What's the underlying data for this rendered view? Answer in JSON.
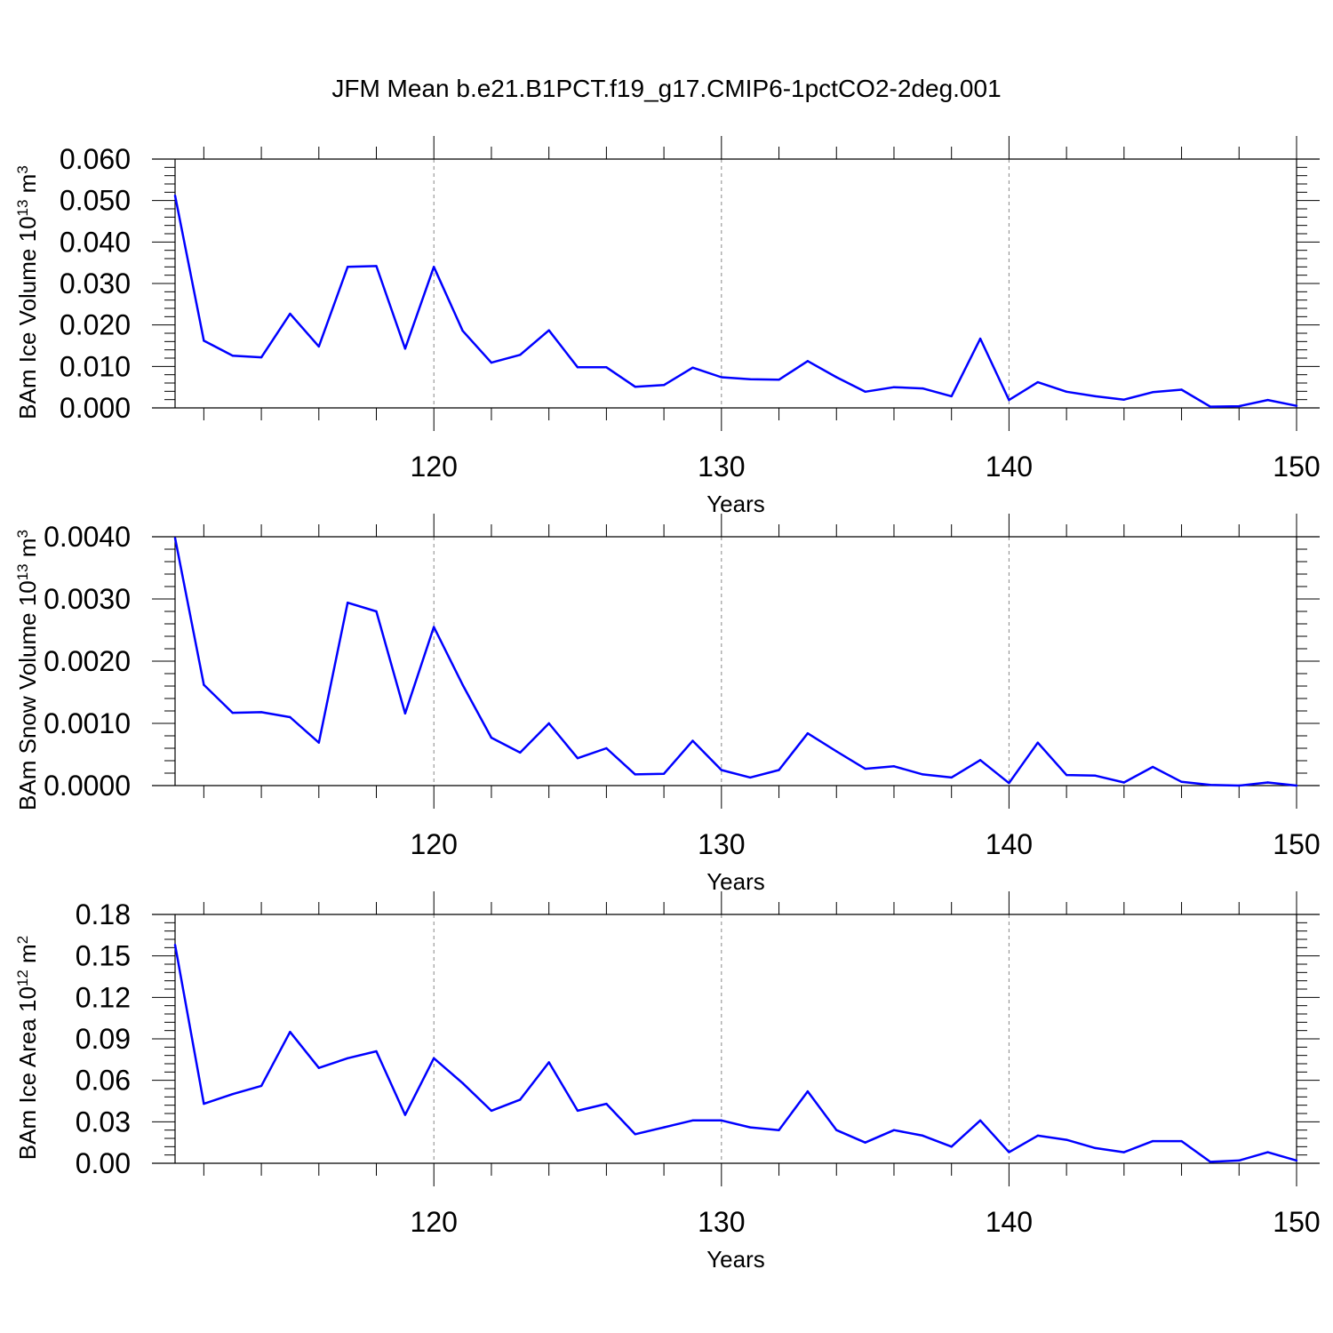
{
  "title": "JFM Mean b.e21.B1PCT.f19_g17.CMIP6-1pctCO2-2deg.001",
  "colors": {
    "series": "#0000ff",
    "axis": "#000000",
    "grid": "#888888"
  },
  "chart_data": [
    {
      "type": "line",
      "xlabel": "Years",
      "ylabel": "BAm Ice Volume 10",
      "ylabel_exp": "13",
      "ylabel_unit": "m",
      "ylabel_unit_exp": "3",
      "xlim": [
        111,
        150
      ],
      "ylim": [
        0.0,
        0.06
      ],
      "xticks": [
        120,
        130,
        140,
        150
      ],
      "yticks": [
        "0.000",
        "0.010",
        "0.020",
        "0.030",
        "0.040",
        "0.050",
        "0.060"
      ],
      "ytick_values": [
        0.0,
        0.01,
        0.02,
        0.03,
        0.04,
        0.05,
        0.06
      ],
      "grid": "vertical dashed at major x ticks",
      "x": [
        111,
        112,
        113,
        114,
        115,
        116,
        117,
        118,
        119,
        120,
        121,
        122,
        123,
        124,
        125,
        126,
        127,
        128,
        129,
        130,
        131,
        132,
        133,
        134,
        135,
        136,
        137,
        138,
        139,
        140,
        141,
        142,
        143,
        144,
        145,
        146,
        147,
        148,
        149,
        150
      ],
      "y": [
        0.0512,
        0.0162,
        0.0126,
        0.0122,
        0.0227,
        0.0148,
        0.034,
        0.0342,
        0.0143,
        0.034,
        0.0186,
        0.0109,
        0.0128,
        0.0187,
        0.0098,
        0.0098,
        0.0051,
        0.0055,
        0.0097,
        0.0074,
        0.0069,
        0.0068,
        0.0113,
        0.0074,
        0.0039,
        0.005,
        0.0047,
        0.0028,
        0.0167,
        0.0019,
        0.0062,
        0.0039,
        0.0028,
        0.002,
        0.0038,
        0.0044,
        0.0003,
        0.0004,
        0.0019,
        0.0005
      ]
    },
    {
      "type": "line",
      "xlabel": "Years",
      "ylabel": "BAm Snow Volume 10",
      "ylabel_exp": "13",
      "ylabel_unit": "m",
      "ylabel_unit_exp": "3",
      "xlim": [
        111,
        150
      ],
      "ylim": [
        0.0,
        0.004
      ],
      "xticks": [
        120,
        130,
        140,
        150
      ],
      "yticks": [
        "0.0000",
        "0.0010",
        "0.0020",
        "0.0030",
        "0.0040"
      ],
      "ytick_values": [
        0.0,
        0.001,
        0.002,
        0.003,
        0.004
      ],
      "grid": "vertical dashed at major x ticks",
      "x": [
        111,
        112,
        113,
        114,
        115,
        116,
        117,
        118,
        119,
        120,
        121,
        122,
        123,
        124,
        125,
        126,
        127,
        128,
        129,
        130,
        131,
        132,
        133,
        134,
        135,
        136,
        137,
        138,
        139,
        140,
        141,
        142,
        143,
        144,
        145,
        146,
        147,
        148,
        149,
        150
      ],
      "y": [
        0.00398,
        0.00162,
        0.00117,
        0.00118,
        0.0011,
        0.00069,
        0.00294,
        0.0028,
        0.00116,
        0.00255,
        0.00162,
        0.00077,
        0.00053,
        0.001,
        0.00044,
        0.0006,
        0.00018,
        0.00019,
        0.00072,
        0.00025,
        0.00013,
        0.00025,
        0.00084,
        0.00055,
        0.00027,
        0.00031,
        0.00018,
        0.00013,
        0.00041,
        4e-05,
        0.00069,
        0.00017,
        0.00016,
        5e-05,
        0.0003,
        6e-05,
        1e-05,
        0.0,
        5e-05,
        0.0
      ]
    },
    {
      "type": "line",
      "xlabel": "Years",
      "ylabel": "BAm Ice Area 10",
      "ylabel_exp": "12",
      "ylabel_unit": "m",
      "ylabel_unit_exp": "2",
      "xlim": [
        111,
        150
      ],
      "ylim": [
        0.0,
        0.18
      ],
      "xticks": [
        120,
        130,
        140,
        150
      ],
      "yticks": [
        "0.00",
        "0.03",
        "0.06",
        "0.09",
        "0.12",
        "0.15",
        "0.18"
      ],
      "ytick_values": [
        0.0,
        0.03,
        0.06,
        0.09,
        0.12,
        0.15,
        0.18
      ],
      "grid": "vertical dashed at major x ticks",
      "x": [
        111,
        112,
        113,
        114,
        115,
        116,
        117,
        118,
        119,
        120,
        121,
        122,
        123,
        124,
        125,
        126,
        127,
        128,
        129,
        130,
        131,
        132,
        133,
        134,
        135,
        136,
        137,
        138,
        139,
        140,
        141,
        142,
        143,
        144,
        145,
        146,
        147,
        148,
        149,
        150
      ],
      "y": [
        0.158,
        0.043,
        0.05,
        0.056,
        0.095,
        0.069,
        0.076,
        0.081,
        0.035,
        0.076,
        0.058,
        0.038,
        0.046,
        0.073,
        0.038,
        0.043,
        0.021,
        0.026,
        0.031,
        0.031,
        0.026,
        0.024,
        0.052,
        0.024,
        0.015,
        0.024,
        0.02,
        0.012,
        0.031,
        0.008,
        0.02,
        0.017,
        0.011,
        0.008,
        0.016,
        0.016,
        0.001,
        0.002,
        0.008,
        0.002
      ]
    }
  ]
}
